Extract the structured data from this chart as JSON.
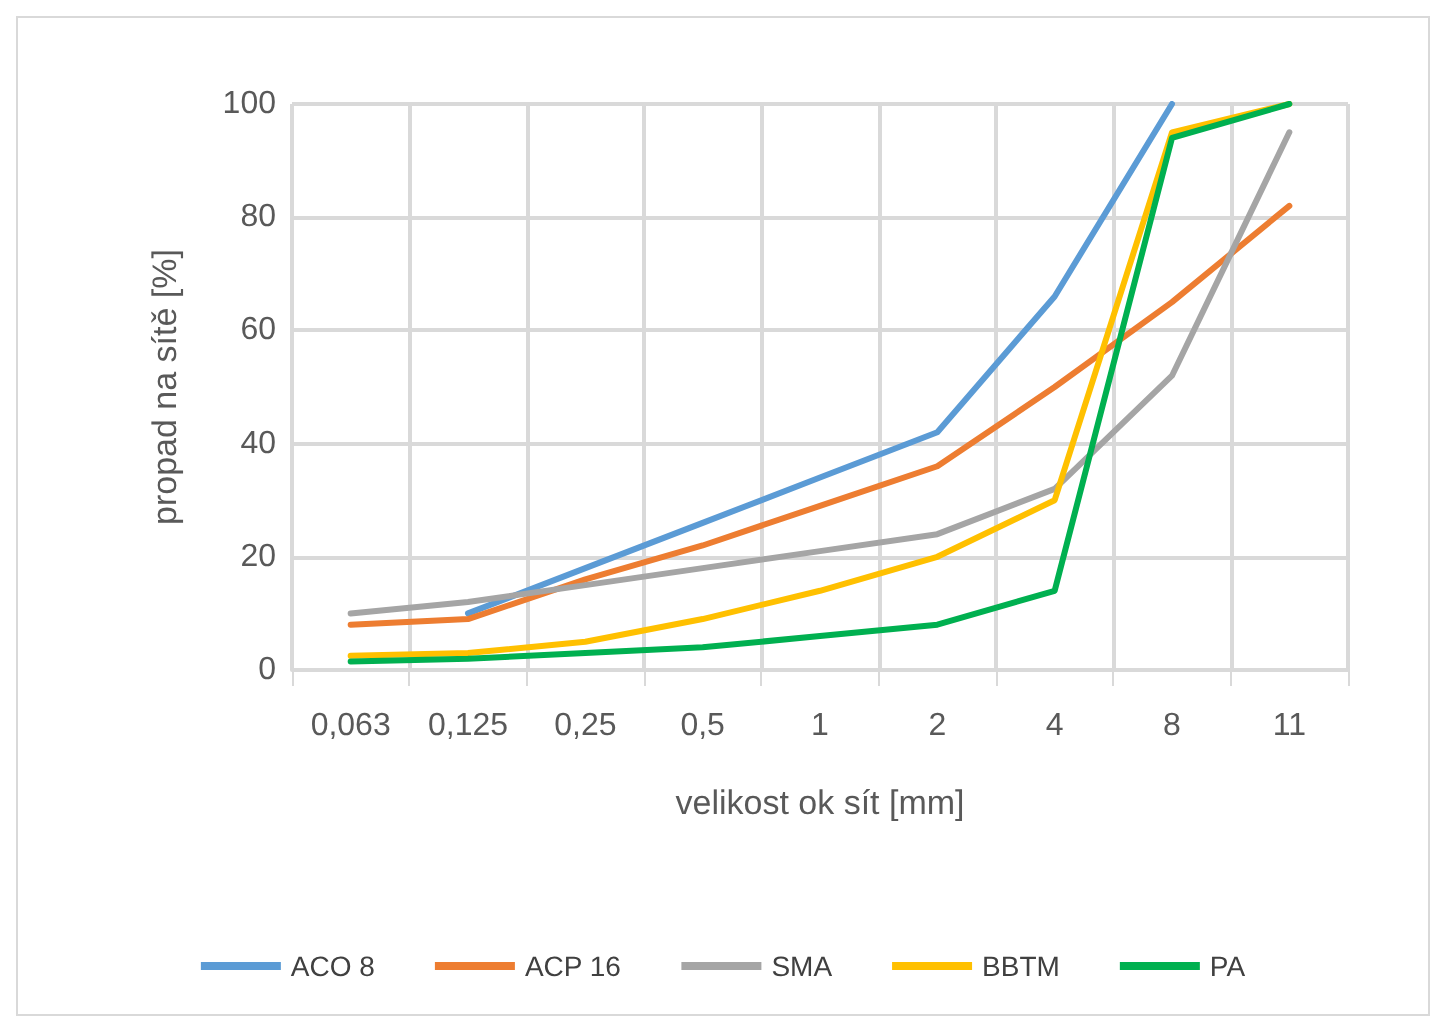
{
  "chart_data": {
    "type": "line",
    "xlabel": "velikost ok sít [mm]",
    "ylabel": "propad na sítě [%]",
    "categories": [
      "0,063",
      "0,125",
      "0,25",
      "0,5",
      "1",
      "2",
      "4",
      "8",
      "11"
    ],
    "series": [
      {
        "name": "ACO 8",
        "color": "#5b9bd5",
        "values": [
          null,
          10,
          18,
          26,
          34,
          42,
          66,
          100,
          null
        ]
      },
      {
        "name": "ACP 16",
        "color": "#ed7d31",
        "values": [
          8,
          9,
          16,
          22,
          29,
          36,
          50,
          65,
          82
        ]
      },
      {
        "name": "SMA",
        "color": "#a5a5a5",
        "values": [
          10,
          12,
          15,
          18,
          21,
          24,
          32,
          52,
          95
        ]
      },
      {
        "name": "BBTM",
        "color": "#ffc000",
        "values": [
          2.5,
          3,
          5,
          9,
          14,
          20,
          30,
          95,
          100
        ]
      },
      {
        "name": "PA",
        "color": "#00b050",
        "values": [
          1.5,
          2,
          3,
          4,
          6,
          8,
          14,
          94,
          100
        ]
      }
    ],
    "ylim": [
      0,
      100
    ],
    "yticks": [
      0,
      20,
      40,
      60,
      80,
      100
    ],
    "grid": true,
    "legend": "bottom",
    "marker": "none",
    "line_style": "solid"
  }
}
